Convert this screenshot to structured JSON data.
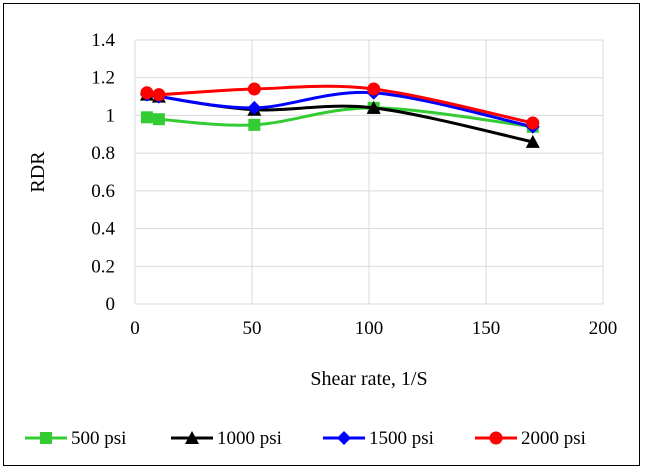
{
  "chart_data": {
    "type": "line",
    "xlabel": "Shear rate, 1/S",
    "ylabel": "RDR",
    "xlim": [
      0,
      200
    ],
    "ylim": [
      0,
      1.4
    ],
    "x_ticks": [
      "0",
      "50",
      "100",
      "150",
      "200"
    ],
    "y_ticks": [
      "0",
      "0.2",
      "0.4",
      "0.6",
      "0.8",
      "1",
      "1.2",
      "1.4"
    ],
    "grid": "both",
    "legend_position": "bottom",
    "series": [
      {
        "name": "500 psi",
        "color": "#33cc33",
        "marker": "square",
        "x": [
          5.1,
          10.2,
          51,
          102,
          170
        ],
        "y": [
          0.99,
          0.98,
          0.95,
          1.04,
          0.94
        ]
      },
      {
        "name": "1000 psi",
        "color": "#000000",
        "marker": "triangle",
        "x": [
          5.1,
          10.2,
          51,
          102,
          170
        ],
        "y": [
          1.11,
          1.1,
          1.03,
          1.04,
          0.86
        ]
      },
      {
        "name": "1500 psi",
        "color": "#0000ff",
        "marker": "diamond",
        "x": [
          5.1,
          10.2,
          51,
          102,
          170
        ],
        "y": [
          1.11,
          1.1,
          1.04,
          1.12,
          0.94
        ]
      },
      {
        "name": "2000 psi",
        "color": "#ff0000",
        "marker": "circle",
        "x": [
          5.1,
          10.2,
          51,
          102,
          170
        ],
        "y": [
          1.12,
          1.11,
          1.14,
          1.14,
          0.96
        ]
      }
    ]
  }
}
